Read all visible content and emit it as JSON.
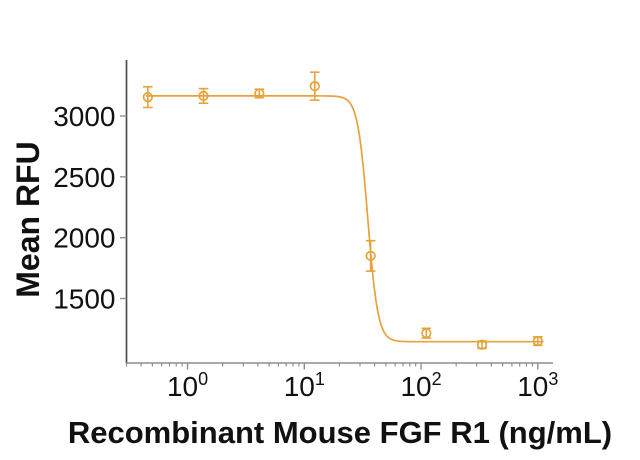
{
  "chart_data": {
    "type": "scatter",
    "title": "",
    "xlabel": "Recombinant Mouse FGF R1 (ng/mL)",
    "ylabel": "Mean RFU",
    "x_scale": "log10",
    "xlim": [
      0.3,
      1350
    ],
    "ylim": [
      970,
      3460
    ],
    "grid": false,
    "legend": "none",
    "x_ticks": [
      {
        "value": 1,
        "label_base": "10",
        "label_exp": "0"
      },
      {
        "value": 10,
        "label_base": "10",
        "label_exp": "1"
      },
      {
        "value": 100,
        "label_base": "10",
        "label_exp": "2"
      },
      {
        "value": 1000,
        "label_base": "10",
        "label_exp": "3"
      }
    ],
    "y_ticks": [
      {
        "value": 1500,
        "label": "1500"
      },
      {
        "value": 2000,
        "label": "2000"
      },
      {
        "value": 2500,
        "label": "2500"
      },
      {
        "value": 3000,
        "label": "3000"
      }
    ],
    "points": [
      {
        "conc": 0.457,
        "mean": 3155,
        "sem": 85
      },
      {
        "conc": 1.37,
        "mean": 3165,
        "sem": 60
      },
      {
        "conc": 4.12,
        "mean": 3185,
        "sem": 35
      },
      {
        "conc": 12.3,
        "mean": 3245,
        "sem": 115
      },
      {
        "conc": 37,
        "mean": 1850,
        "sem": 125
      },
      {
        "conc": 111,
        "mean": 1215,
        "sem": 40
      },
      {
        "conc": 333,
        "mean": 1120,
        "sem": 30
      },
      {
        "conc": 1000,
        "mean": 1150,
        "sem": 35
      }
    ],
    "fit_curve": {
      "model": "4PL",
      "top": 3165,
      "bottom": 1145,
      "ec50": 35,
      "hill": 10,
      "conc_range": [
        0.44,
        1120
      ]
    },
    "colors": {
      "series": "#E8A23A",
      "axis_y": "#4d4d4d",
      "axis_x": "#8e8e8e",
      "tick": "#8e8e8e",
      "text": "#111111"
    }
  }
}
